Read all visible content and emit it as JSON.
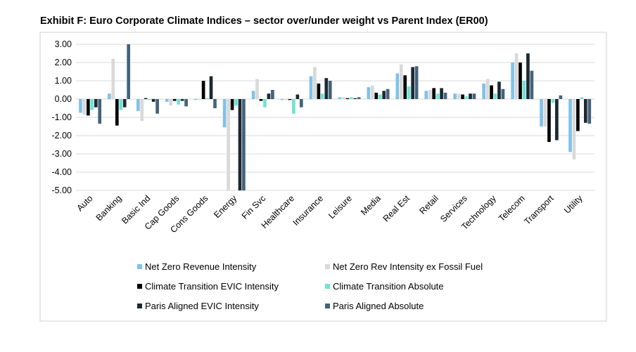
{
  "chart_data": {
    "type": "bar",
    "title": "Exhibit F: Euro Corporate Climate Indices – sector over/under weight vs Parent Index (ER00)",
    "categories": [
      "Auto",
      "Banking",
      "Basic Ind",
      "Cap Goods",
      "Cons Goods",
      "Energy",
      "Fin Svc",
      "Healthcare",
      "Insurance",
      "Leisure",
      "Media",
      "Real Est",
      "Retail",
      "Services",
      "Technology",
      "Telecom",
      "Transport",
      "Utility"
    ],
    "series": [
      {
        "name": "Net Zero Revenue Intensity",
        "color": "#82c1e8",
        "values": [
          -0.75,
          0.3,
          -0.65,
          -0.15,
          -0.05,
          -1.55,
          0.45,
          -0.05,
          1.25,
          0.1,
          0.65,
          1.4,
          0.45,
          0.3,
          0.85,
          2.0,
          -1.5,
          -2.9
        ]
      },
      {
        "name": "Net Zero Rev Intensity ex Fossil Fuel",
        "color": "#d9d9d9",
        "values": [
          -0.85,
          2.2,
          -1.2,
          -0.35,
          -0.05,
          -5.0,
          1.1,
          -0.05,
          1.75,
          0.1,
          0.75,
          1.9,
          0.5,
          0.3,
          1.1,
          2.5,
          -1.5,
          -3.3
        ]
      },
      {
        "name": "Climate Transition EVIC Intensity",
        "color": "#000000",
        "values": [
          -0.9,
          -1.45,
          0.05,
          -0.1,
          1.0,
          -0.6,
          -0.1,
          -0.05,
          0.85,
          0.05,
          0.35,
          1.3,
          0.6,
          0.25,
          0.75,
          2.0,
          -2.35,
          -1.75
        ]
      },
      {
        "name": "Climate Transition Absolute",
        "color": "#74e2d2",
        "values": [
          -0.6,
          -0.6,
          -0.05,
          -0.3,
          0.05,
          -0.35,
          -0.45,
          -0.8,
          0.3,
          0.1,
          0.25,
          0.7,
          0.3,
          0.15,
          0.3,
          1.0,
          -0.2,
          0.1
        ]
      },
      {
        "name": "Paris Aligned EVIC Intensity",
        "color": "#1c2833",
        "values": [
          -0.45,
          -0.45,
          -0.15,
          -0.1,
          1.25,
          -5.0,
          0.3,
          0.25,
          1.15,
          0.05,
          0.45,
          1.75,
          0.6,
          0.3,
          0.95,
          2.5,
          -2.25,
          -1.3
        ]
      },
      {
        "name": "Paris Aligned Absolute",
        "color": "#44627a",
        "values": [
          -1.35,
          3.0,
          -0.8,
          -0.4,
          -0.5,
          -5.0,
          0.5,
          -0.45,
          1.0,
          0.1,
          0.55,
          1.8,
          0.35,
          0.3,
          0.55,
          1.55,
          0.2,
          -1.35
        ]
      }
    ],
    "ylim": [
      -5,
      3
    ],
    "yticks": [
      {
        "value": 3,
        "label": "3.00"
      },
      {
        "value": 2,
        "label": "2.00"
      },
      {
        "value": 1,
        "label": "1.00"
      },
      {
        "value": 0,
        "label": "0.00"
      },
      {
        "value": -1,
        "label": "-1.00"
      },
      {
        "value": -2,
        "label": "-2.00"
      },
      {
        "value": -3,
        "label": "-3.00"
      },
      {
        "value": -4,
        "label": "-4.00"
      },
      {
        "value": -5,
        "label": "-5.00"
      }
    ],
    "grid": true
  }
}
